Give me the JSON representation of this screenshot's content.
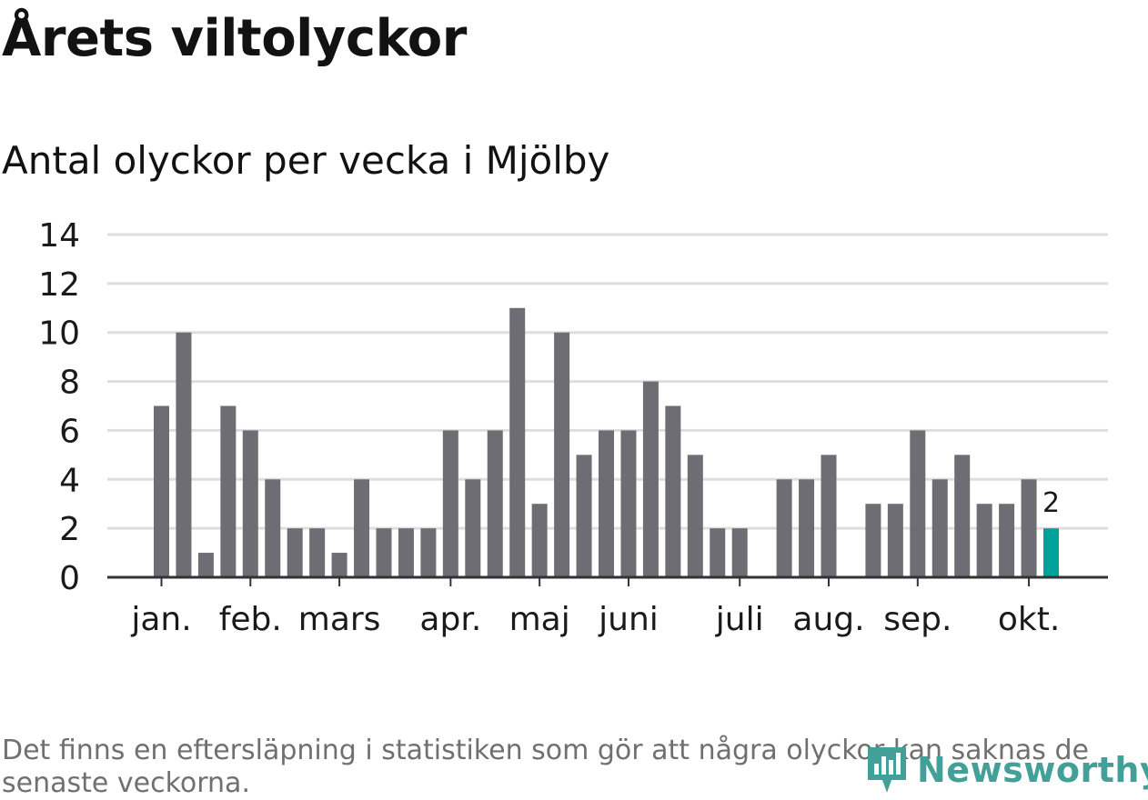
{
  "title": "Årets viltolyckor",
  "subtitle": "Antal olyckor per vecka i Mjölby",
  "footnote": "Det finns en eftersläpning i statistiken som gör att några olyckor kan saknas de senaste veckorna.",
  "logo_text": "Newsworthy",
  "colors": {
    "bar": "#6e6d73",
    "highlight": "#00a39a",
    "grid": "#dedede",
    "axis": "#333333",
    "text": "#1a1a1a"
  },
  "chart_data": {
    "type": "bar",
    "title": "Antal olyckor per vecka i Mjölby",
    "xlabel": "",
    "ylabel": "",
    "ylim": [
      0,
      14
    ],
    "yticks": [
      0,
      2,
      4,
      6,
      8,
      10,
      12,
      14
    ],
    "grid": true,
    "values": [
      7,
      10,
      1,
      7,
      6,
      4,
      2,
      2,
      1,
      4,
      2,
      2,
      2,
      6,
      4,
      6,
      11,
      3,
      10,
      5,
      6,
      6,
      8,
      7,
      5,
      2,
      2,
      0,
      4,
      4,
      5,
      0,
      3,
      3,
      6,
      4,
      5,
      3,
      3,
      4,
      2
    ],
    "highlight_index": 40,
    "highlight_label": "2",
    "months": [
      {
        "label": "jan.",
        "week_index": 0
      },
      {
        "label": "feb.",
        "week_index": 4
      },
      {
        "label": "mars",
        "week_index": 8
      },
      {
        "label": "apr.",
        "week_index": 13
      },
      {
        "label": "maj",
        "week_index": 17
      },
      {
        "label": "juni",
        "week_index": 21
      },
      {
        "label": "juli",
        "week_index": 26
      },
      {
        "label": "aug.",
        "week_index": 30
      },
      {
        "label": "sep.",
        "week_index": 34
      },
      {
        "label": "okt.",
        "week_index": 39
      }
    ]
  }
}
